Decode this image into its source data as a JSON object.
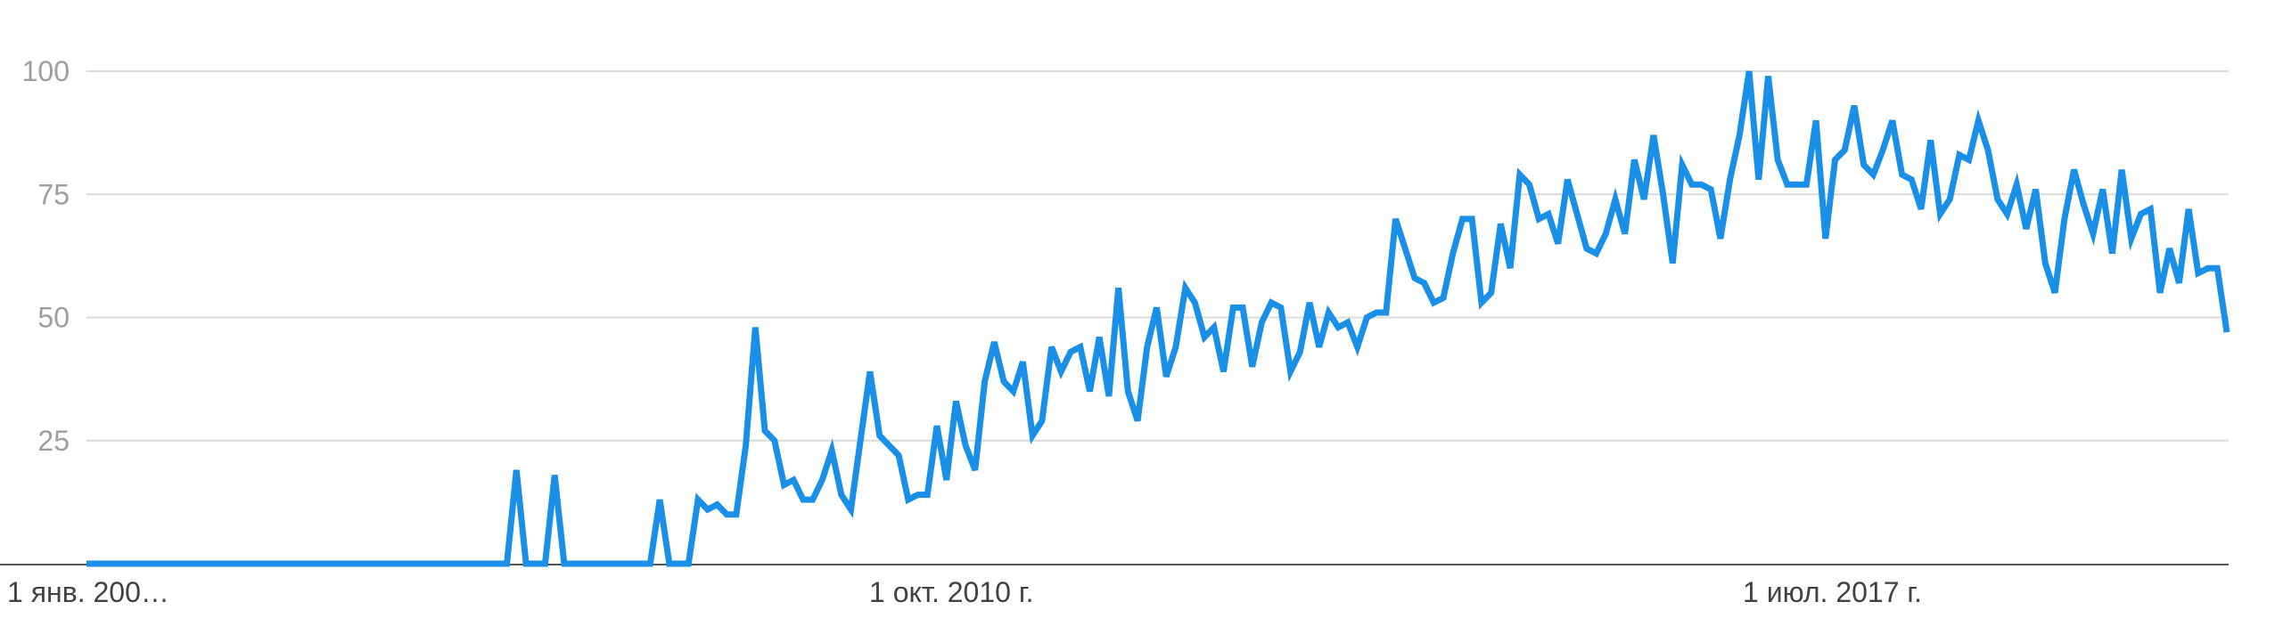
{
  "chart_data": {
    "type": "line",
    "title": "",
    "xlabel": "",
    "ylabel": "",
    "ylim": [
      0,
      100
    ],
    "yticks": [
      25,
      50,
      75,
      100
    ],
    "xtick_labels": [
      "1 янв. 200…",
      "1 окт. 2010 г.",
      "1 июл. 2017 г."
    ],
    "grid": true,
    "colors": {
      "line": "#1a8fe8",
      "grid": "#dadada",
      "axis": "#555555"
    },
    "series": [
      {
        "values": [
          0,
          0,
          0,
          0,
          0,
          0,
          0,
          0,
          0,
          0,
          0,
          0,
          0,
          0,
          0,
          0,
          0,
          0,
          0,
          0,
          0,
          0,
          0,
          0,
          0,
          0,
          0,
          0,
          0,
          0,
          0,
          0,
          0,
          0,
          0,
          0,
          0,
          0,
          0,
          0,
          0,
          0,
          0,
          0,
          0,
          19,
          0,
          0,
          0,
          18,
          0,
          0,
          0,
          0,
          0,
          0,
          0,
          0,
          0,
          0,
          13,
          0,
          0,
          0,
          13,
          11,
          12,
          10,
          10,
          24,
          48,
          27,
          25,
          16,
          17,
          13,
          13,
          17,
          23,
          14,
          11,
          25,
          39,
          26,
          24,
          22,
          13,
          14,
          14,
          28,
          17,
          33,
          24,
          19,
          37,
          45,
          37,
          35,
          41,
          26,
          29,
          44,
          39,
          43,
          44,
          35,
          46,
          34,
          56,
          35,
          29,
          44,
          52,
          38,
          44,
          56,
          53,
          46,
          48,
          39,
          52,
          52,
          40,
          49,
          53,
          52,
          39,
          43,
          53,
          44,
          51,
          48,
          49,
          44,
          50,
          51,
          51,
          70,
          64,
          58,
          57,
          53,
          54,
          63,
          70,
          70,
          53,
          55,
          69,
          60,
          79,
          77,
          70,
          71,
          65,
          78,
          71,
          64,
          63,
          67,
          74,
          67,
          82,
          74,
          87,
          75,
          61,
          81,
          77,
          77,
          76,
          66,
          78,
          87,
          100,
          78,
          99,
          82,
          77,
          77,
          77,
          90,
          66,
          82,
          84,
          93,
          81,
          79,
          84,
          90,
          79,
          78,
          72,
          86,
          71,
          74,
          83,
          82,
          90,
          84,
          74,
          71,
          77,
          68,
          76,
          61,
          55,
          70,
          80,
          73,
          67,
          76,
          63,
          80,
          66,
          71,
          72,
          55,
          64,
          57,
          72,
          59,
          60,
          60,
          47
        ]
      }
    ]
  }
}
